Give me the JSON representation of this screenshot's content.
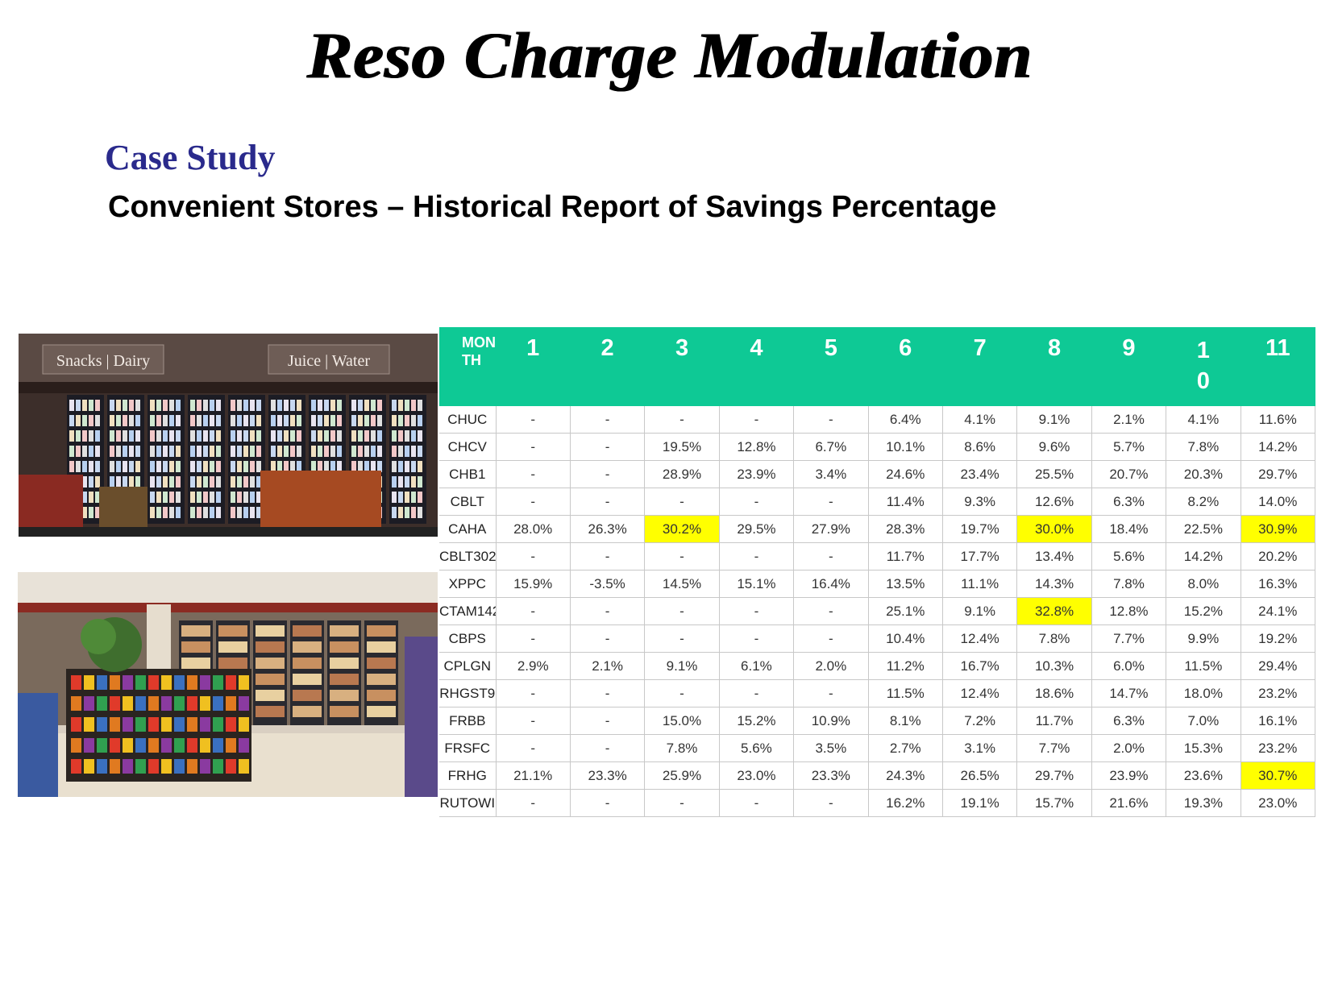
{
  "title": "Reso Charge Modulation",
  "case_study": "Case Study",
  "subtitle": "Convenient Stores – Historical Report of Savings Percentage",
  "photos": [
    {
      "signs": [
        "Snacks | Dairy",
        "Juice | Water"
      ]
    },
    {
      "signs": []
    }
  ],
  "table": {
    "header_label": [
      "MON",
      "TH"
    ],
    "months": [
      "1",
      "2",
      "3",
      "4",
      "5",
      "6",
      "7",
      "8",
      "9",
      "1\n0",
      "11"
    ],
    "rows": [
      {
        "store": "CHUC",
        "values": [
          "-",
          "-",
          "-",
          "-",
          "-",
          "6.4%",
          "4.1%",
          "9.1%",
          "2.1%",
          "4.1%",
          "11.6%"
        ]
      },
      {
        "store": "CHCV",
        "values": [
          "-",
          "-",
          "19.5%",
          "12.8%",
          "6.7%",
          "10.1%",
          "8.6%",
          "9.6%",
          "5.7%",
          "7.8%",
          "14.2%"
        ]
      },
      {
        "store": "CHB1",
        "values": [
          "-",
          "-",
          "28.9%",
          "23.9%",
          "3.4%",
          "24.6%",
          "23.4%",
          "25.5%",
          "20.7%",
          "20.3%",
          "29.7%"
        ]
      },
      {
        "store": "CBLT",
        "values": [
          "-",
          "-",
          "-",
          "-",
          "-",
          "11.4%",
          "9.3%",
          "12.6%",
          "6.3%",
          "8.2%",
          "14.0%"
        ]
      },
      {
        "store": "CAHA",
        "values": [
          "28.0%",
          "26.3%",
          "30.2%",
          "29.5%",
          "27.9%",
          "28.3%",
          "19.7%",
          "30.0%",
          "18.4%",
          "22.5%",
          "30.9%"
        ]
      },
      {
        "store": "CBLT302",
        "values": [
          "-",
          "-",
          "-",
          "-",
          "-",
          "11.7%",
          "17.7%",
          "13.4%",
          "5.6%",
          "14.2%",
          "20.2%"
        ]
      },
      {
        "store": "XPPC",
        "values": [
          "15.9%",
          "-3.5%",
          "14.5%",
          "15.1%",
          "16.4%",
          "13.5%",
          "11.1%",
          "14.3%",
          "7.8%",
          "8.0%",
          "16.3%"
        ]
      },
      {
        "store": "CTAM142",
        "values": [
          "-",
          "-",
          "-",
          "-",
          "-",
          "25.1%",
          "9.1%",
          "32.8%",
          "12.8%",
          "15.2%",
          "24.1%"
        ]
      },
      {
        "store": "CBPS",
        "values": [
          "-",
          "-",
          "-",
          "-",
          "-",
          "10.4%",
          "12.4%",
          "7.8%",
          "7.7%",
          "9.9%",
          "19.2%"
        ]
      },
      {
        "store": "CPLGN",
        "values": [
          "2.9%",
          "2.1%",
          "9.1%",
          "6.1%",
          "2.0%",
          "11.2%",
          "16.7%",
          "10.3%",
          "6.0%",
          "11.5%",
          "29.4%"
        ]
      },
      {
        "store": "RHGST9",
        "values": [
          "-",
          "-",
          "-",
          "-",
          "-",
          "11.5%",
          "12.4%",
          "18.6%",
          "14.7%",
          "18.0%",
          "23.2%"
        ]
      },
      {
        "store": "FRBB",
        "values": [
          "-",
          "-",
          "15.0%",
          "15.2%",
          "10.9%",
          "8.1%",
          "7.2%",
          "11.7%",
          "6.3%",
          "7.0%",
          "16.1%"
        ]
      },
      {
        "store": "FRSFC",
        "values": [
          "-",
          "-",
          "7.8%",
          "5.6%",
          "3.5%",
          "2.7%",
          "3.1%",
          "7.7%",
          "2.0%",
          "15.3%",
          "23.2%"
        ]
      },
      {
        "store": "FRHG",
        "values": [
          "21.1%",
          "23.3%",
          "25.9%",
          "23.0%",
          "23.3%",
          "24.3%",
          "26.5%",
          "29.7%",
          "23.9%",
          "23.6%",
          "30.7%"
        ]
      },
      {
        "store": "RUTOWI",
        "values": [
          "-",
          "-",
          "-",
          "-",
          "-",
          "16.2%",
          "19.1%",
          "15.7%",
          "21.6%",
          "19.3%",
          "23.0%"
        ]
      }
    ],
    "colors": {
      "header": "#0ec995",
      "highlight": "#ffff00",
      "green_text": "#1fa854",
      "red_text": "#e02020"
    },
    "highlight_cells": [
      [
        4,
        2
      ],
      [
        4,
        7
      ],
      [
        4,
        10
      ],
      [
        7,
        7
      ],
      [
        13,
        10
      ]
    ],
    "green_cells": [
      [
        0,
        6
      ],
      [
        0,
        8
      ],
      [
        0,
        9
      ],
      [
        1,
        8
      ],
      [
        2,
        4
      ],
      [
        5,
        8
      ],
      [
        9,
        0
      ],
      [
        9,
        1
      ],
      [
        9,
        4
      ],
      [
        9,
        8
      ],
      [
        12,
        3
      ],
      [
        12,
        4
      ],
      [
        12,
        5
      ],
      [
        12,
        6
      ],
      [
        12,
        8
      ]
    ],
    "red_cells": [
      [
        6,
        1
      ]
    ]
  }
}
